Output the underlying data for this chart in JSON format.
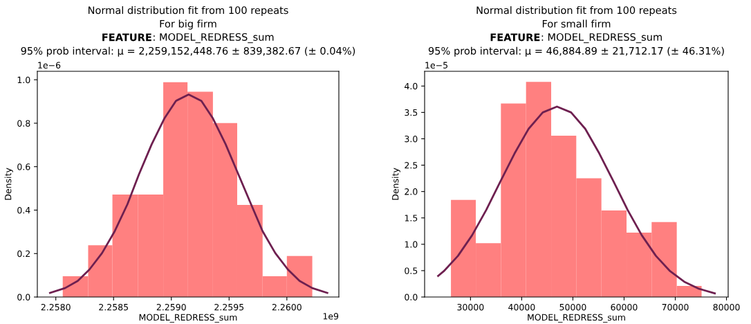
{
  "chart_data": [
    {
      "type": "histogram",
      "title": "Normal distribution fit from 100 repeats",
      "subtitle": "For big firm",
      "xlabel": "MODEL_REDRESS_sum",
      "ylabel": "Density",
      "annotations": [
        "FEATURE",
        ": MODEL_REDRESS_sum",
        "95% prob interval: μ = 2,259,152,448.76 ± 839,382.67 (± 0.04%)",
        "1e−6",
        "1e9"
      ],
      "bins": [
        2.25806,
        2.25828,
        2.25849,
        2.25871,
        2.25893,
        2.25914,
        2.25936,
        2.25957,
        2.25979,
        2.26,
        2.26022
      ],
      "values": [
        0.096,
        0.238,
        0.472,
        0.472,
        0.989,
        0.945,
        0.801,
        0.424,
        0.096,
        0.189
      ],
      "color": "#ff8080",
      "series": [
        {
          "type": "line",
          "color": "#6e2050",
          "x": [
            2.25795,
            2.25808,
            2.25819,
            2.25829,
            2.2584,
            2.25851,
            2.25862,
            2.25872,
            2.25883,
            2.25894,
            2.25904,
            2.25915,
            2.25926,
            2.25936,
            2.25947,
            2.25958,
            2.25969,
            2.25979,
            2.2599,
            2.26001,
            2.26011,
            2.26022,
            2.26035
          ],
          "values": [
            0.019,
            0.041,
            0.074,
            0.126,
            0.202,
            0.303,
            0.427,
            0.565,
            0.703,
            0.822,
            0.903,
            0.932,
            0.903,
            0.822,
            0.703,
            0.565,
            0.427,
            0.303,
            0.202,
            0.126,
            0.074,
            0.041,
            0.019
          ]
        }
      ],
      "xlim": [
        2.25784,
        2.26045
      ],
      "ylim": [
        0,
        1.039
      ],
      "xticks": [
        {
          "value": 2.258,
          "label": "2.2580"
        },
        {
          "value": 2.2585,
          "label": "2.2585"
        },
        {
          "value": 2.259,
          "label": "2.2590"
        },
        {
          "value": 2.2595,
          "label": "2.2595"
        },
        {
          "value": 2.26,
          "label": "2.2600"
        }
      ],
      "yticks": [
        {
          "value": 0,
          "label": "0.0"
        },
        0.2,
        0.4,
        0.6,
        0.8,
        {
          "value": 1,
          "label": "1.0"
        }
      ],
      "grid": false,
      "legend": false
    },
    {
      "type": "histogram",
      "title": "Normal distribution fit from 100 repeats",
      "subtitle": "For small firm",
      "xlabel": "MODEL_REDRESS_sum",
      "ylabel": "Density",
      "annotations": [
        "FEATURE",
        ": MODEL_REDRESS_sum",
        "95% prob interval: μ = 46,884.89 ± 21,712.17 (± 46.31%)",
        "1e−5"
      ],
      "bins": [
        26180,
        31040,
        35940,
        40850,
        45760,
        50660,
        55570,
        60480,
        65380,
        70290,
        75140
      ],
      "values": [
        1.84,
        1.02,
        3.67,
        4.08,
        3.06,
        2.25,
        1.64,
        1.22,
        1.42,
        0.21
      ],
      "color": "#ff8080",
      "series": [
        {
          "type": "line",
          "color": "#6e2050",
          "x": [
            23680,
            24790,
            27550,
            30310,
            33070,
            35840,
            38600,
            41360,
            44120,
            46890,
            49650,
            52410,
            55170,
            57940,
            60700,
            63460,
            66220,
            68990,
            71750,
            74510,
            77720
          ],
          "values": [
            0.4,
            0.49,
            0.78,
            1.17,
            1.65,
            2.19,
            2.72,
            3.19,
            3.5,
            3.61,
            3.5,
            3.19,
            2.72,
            2.19,
            1.65,
            1.17,
            0.78,
            0.49,
            0.29,
            0.16,
            0.07
          ]
        }
      ],
      "xlim": [
        21040,
        80330
      ],
      "ylim": [
        0,
        4.28
      ],
      "xticks": [
        30000,
        40000,
        50000,
        60000,
        70000,
        80000
      ],
      "yticks": [
        {
          "value": 0,
          "label": "0.0"
        },
        0.5,
        {
          "value": 1,
          "label": "1.0"
        },
        1.5,
        {
          "value": 2,
          "label": "2.0"
        },
        2.5,
        {
          "value": 3,
          "label": "3.0"
        },
        3.5,
        {
          "value": 4,
          "label": "4.0"
        }
      ],
      "grid": false,
      "legend": false
    }
  ]
}
